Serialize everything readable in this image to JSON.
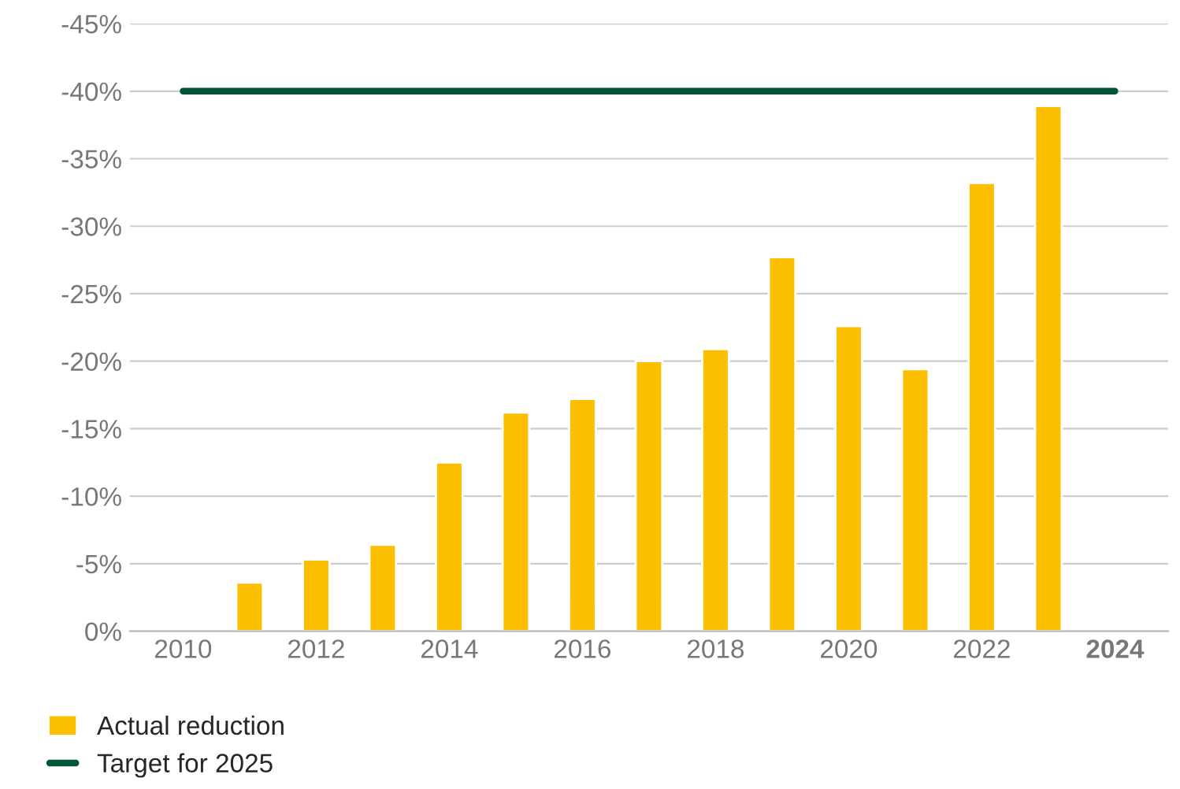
{
  "chart_data": {
    "type": "bar",
    "categories": [
      "2010",
      null,
      "2012",
      null,
      "2014",
      null,
      "2016",
      null,
      "2018",
      null,
      "2020",
      null,
      "2022",
      null,
      "2024"
    ],
    "series": [
      {
        "name": "Actual reduction",
        "color": "#fcbf00",
        "values": [
          null,
          -3.6,
          -5.3,
          -6.4,
          -12.5,
          -16.2,
          -17.2,
          -20.0,
          -20.9,
          -27.7,
          -22.6,
          -19.4,
          -33.2,
          -38.9,
          null
        ]
      },
      {
        "name": "Target for 2025",
        "type": "line",
        "color": "#00553a",
        "values": [
          -40,
          -40,
          -40,
          -40,
          -40,
          -40,
          -40,
          -40,
          -40,
          -40,
          -40,
          -40,
          -40,
          -40,
          -40
        ]
      }
    ],
    "ylim": [
      0,
      -45
    ],
    "yticks": [
      {
        "value": 0,
        "label": "0%"
      },
      {
        "value": -5,
        "label": "-5%"
      },
      {
        "value": -10,
        "label": "-10%"
      },
      {
        "value": -15,
        "label": "-15%"
      },
      {
        "value": -20,
        "label": "-20%"
      },
      {
        "value": -25,
        "label": "-25%"
      },
      {
        "value": -30,
        "label": "-30%"
      },
      {
        "value": -35,
        "label": "-35%"
      },
      {
        "value": -40,
        "label": "-40%"
      },
      {
        "value": -45,
        "label": "-45%"
      }
    ],
    "grid": "y",
    "legend": "bottom left",
    "marker": "none",
    "line_style": "solid"
  }
}
